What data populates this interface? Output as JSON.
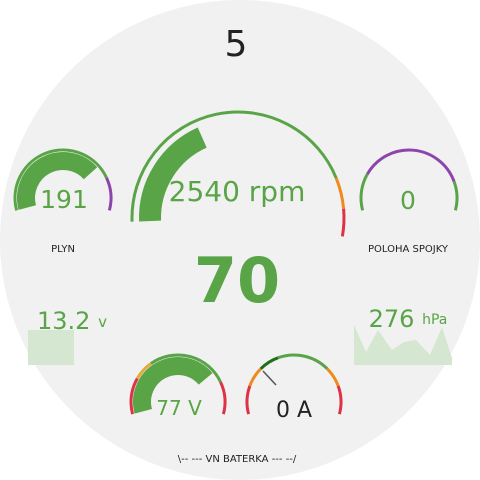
{
  "gear": "5",
  "rpm": {
    "value": 2540,
    "unit": "rpm"
  },
  "speed": 70,
  "throttle": {
    "value": 191,
    "label": "PLYN"
  },
  "clutch": {
    "value": 0,
    "label": "POLOHA SPOJKY"
  },
  "battery_12v": {
    "value": 13.2,
    "unit": "v"
  },
  "pressure": {
    "value": 276,
    "unit": "hPa"
  },
  "hv_voltage": {
    "value": 77,
    "unit": "V"
  },
  "hv_current": {
    "value": 0,
    "unit": "A"
  },
  "footer": "\\-- --- VN BATERKA --- --/"
}
